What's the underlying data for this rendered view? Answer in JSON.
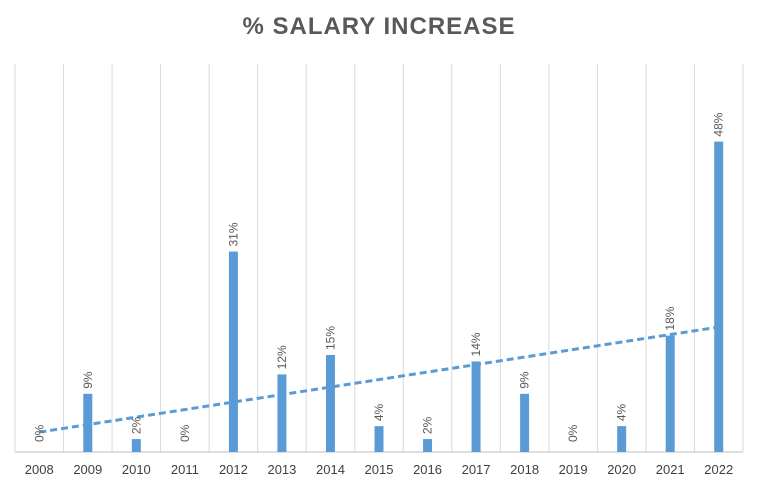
{
  "chart_data": {
    "type": "bar",
    "title": "% SALARY INCREASE",
    "xlabel": "",
    "ylabel": "",
    "categories": [
      "2008",
      "2009",
      "2010",
      "2011",
      "2012",
      "2013",
      "2014",
      "2015",
      "2016",
      "2017",
      "2018",
      "2019",
      "2020",
      "2021",
      "2022"
    ],
    "values": [
      0,
      9,
      2,
      0,
      31,
      12,
      15,
      4,
      2,
      14,
      9,
      0,
      4,
      18,
      48
    ],
    "data_labels": [
      "0%",
      "9%",
      "2%",
      "0%",
      "31%",
      "12%",
      "15%",
      "4%",
      "2%",
      "14%",
      "9%",
      "0%",
      "4%",
      "18%",
      "48%"
    ],
    "ylim": [
      0,
      60
    ],
    "grid": "vertical",
    "trendline": {
      "type": "linear",
      "style": "dashed"
    },
    "colors": {
      "bar": "#5b9bd5",
      "trend": "#5b9bd5",
      "grid": "#d9d9d9",
      "axis": "#bfbfbf"
    }
  }
}
